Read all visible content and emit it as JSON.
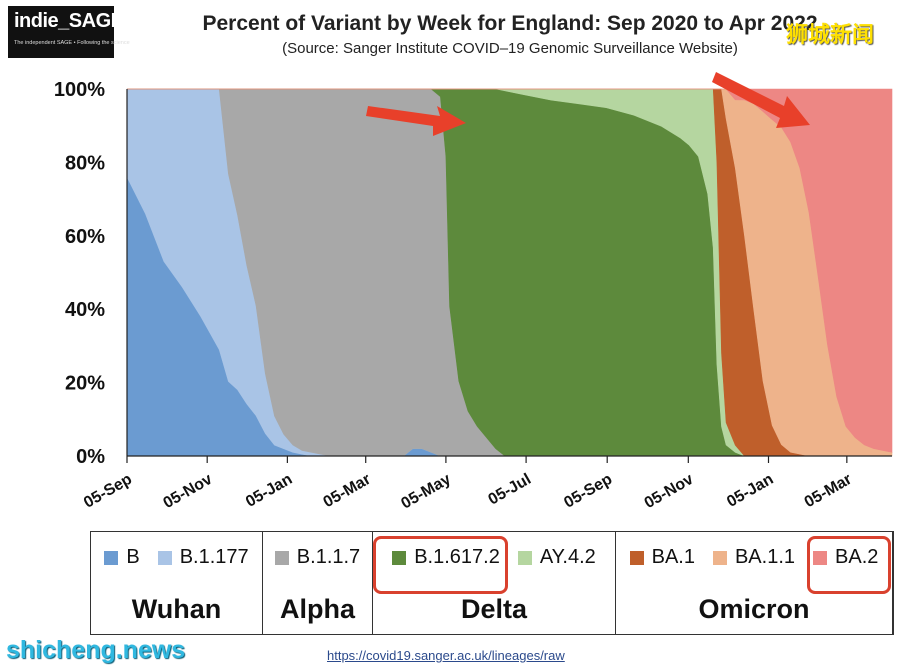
{
  "header": {
    "logo_text": "indie_SAGE",
    "logo_tagline": "The independent SAGE • Following the science",
    "title": "Percent of Variant by Week for England: Sep 2020 to Apr 2022",
    "subtitle": "(Source: Sanger Institute COVID–19 Genomic Surveillance Website)"
  },
  "watermarks": {
    "top": "狮城新闻",
    "bottom": "shicheng.news"
  },
  "source_url": "https://covid19.sanger.ac.uk/lineages/raw",
  "legend_groups": [
    {
      "group": "Wuhan",
      "items": [
        {
          "label": "B",
          "color": "#6b9bd1"
        },
        {
          "label": "B.1.177",
          "color": "#a9c4e6"
        }
      ]
    },
    {
      "group": "Alpha",
      "items": [
        {
          "label": "B.1.1.7",
          "color": "#a8a8a8"
        }
      ]
    },
    {
      "group": "Delta",
      "items": [
        {
          "label": "B.1.617.2",
          "color": "#5d8a3c"
        },
        {
          "label": "AY.4.2",
          "color": "#b5d6a0"
        }
      ]
    },
    {
      "group": "Omicron",
      "items": [
        {
          "label": "BA.1",
          "color": "#bf5f2b"
        },
        {
          "label": "BA.1.1",
          "color": "#eeb38b"
        },
        {
          "label": "BA.2",
          "color": "#ed8784"
        }
      ]
    }
  ],
  "chart_data": {
    "type": "area",
    "stacked": true,
    "title": "Percent of Variant by Week for England: Sep 2020 to Apr 2022",
    "xlabel": "",
    "ylabel": "",
    "x_range_weeks": [
      0,
      83
    ],
    "x_unit": "weeks since 05-Sep-2020",
    "ylim": [
      0,
      100
    ],
    "y_ticks": [
      "0%",
      "20%",
      "40%",
      "60%",
      "80%",
      "100%"
    ],
    "x_ticks": [
      {
        "label": "05-Sep",
        "week": 0
      },
      {
        "label": "05-Nov",
        "week": 8.7
      },
      {
        "label": "05-Jan",
        "week": 17.4
      },
      {
        "label": "05-Mar",
        "week": 25.9
      },
      {
        "label": "05-May",
        "week": 34.6
      },
      {
        "label": "05-Jul",
        "week": 43.3
      },
      {
        "label": "05-Sep",
        "week": 52.1
      },
      {
        "label": "05-Nov",
        "week": 60.9
      },
      {
        "label": "05-Jan",
        "week": 69.6
      },
      {
        "label": "05-Mar",
        "week": 78.1
      }
    ],
    "series": [
      {
        "name": "B",
        "color": "#6b9bd1",
        "points": [
          [
            0,
            76
          ],
          [
            2,
            66
          ],
          [
            4,
            53
          ],
          [
            6,
            46
          ],
          [
            8,
            38
          ],
          [
            10,
            29
          ],
          [
            12,
            22
          ],
          [
            14,
            11
          ],
          [
            15,
            6
          ],
          [
            16,
            3
          ],
          [
            17,
            2
          ],
          [
            18,
            1
          ],
          [
            20,
            0
          ],
          [
            30,
            0
          ],
          [
            31,
            2
          ],
          [
            32,
            2
          ],
          [
            33,
            1
          ],
          [
            34,
            0
          ],
          [
            83,
            0
          ]
        ]
      },
      {
        "name": "B.1.177",
        "color": "#a9c4e6",
        "points": [
          [
            0,
            24
          ],
          [
            2,
            34
          ],
          [
            4,
            47
          ],
          [
            6,
            54
          ],
          [
            8,
            62
          ],
          [
            10,
            71
          ],
          [
            11,
            71
          ],
          [
            12,
            58
          ],
          [
            13,
            44
          ],
          [
            14,
            30
          ],
          [
            15,
            16
          ],
          [
            16,
            8
          ],
          [
            17,
            4
          ],
          [
            18,
            2
          ],
          [
            19,
            1
          ],
          [
            20,
            1
          ],
          [
            22,
            0
          ],
          [
            83,
            0
          ]
        ]
      },
      {
        "name": "B.1.1.7",
        "color": "#a8a8a8",
        "points": [
          [
            0,
            0
          ],
          [
            9,
            0
          ],
          [
            10,
            0
          ],
          [
            11,
            29
          ],
          [
            12,
            42
          ],
          [
            13,
            56
          ],
          [
            14,
            59
          ],
          [
            15,
            76
          ],
          [
            16,
            90
          ],
          [
            17,
            95
          ],
          [
            18,
            97
          ],
          [
            19,
            99
          ],
          [
            26,
            99
          ],
          [
            30,
            98
          ],
          [
            32,
            97
          ],
          [
            33,
            96
          ],
          [
            34,
            94
          ],
          [
            34.6,
            80
          ],
          [
            35,
            40
          ],
          [
            36,
            20
          ],
          [
            37,
            12
          ],
          [
            38,
            8
          ],
          [
            39,
            5
          ],
          [
            40,
            2
          ],
          [
            41,
            0
          ],
          [
            83,
            0
          ]
        ]
      },
      {
        "name": "B.1.617.2",
        "color": "#5d8a3c",
        "points": [
          [
            0,
            0
          ],
          [
            33,
            0
          ],
          [
            34,
            2
          ],
          [
            34.6,
            18
          ],
          [
            35,
            58
          ],
          [
            36,
            78
          ],
          [
            37,
            86
          ],
          [
            38,
            91
          ],
          [
            39,
            94
          ],
          [
            40,
            98
          ],
          [
            41,
            99
          ],
          [
            43,
            97
          ],
          [
            46,
            96
          ],
          [
            49,
            95
          ],
          [
            52,
            93
          ],
          [
            55,
            91
          ],
          [
            58,
            88
          ],
          [
            60,
            85
          ],
          [
            61,
            83
          ],
          [
            62,
            80
          ],
          [
            63,
            70
          ],
          [
            63.6,
            55
          ],
          [
            64,
            25
          ],
          [
            64.5,
            8
          ],
          [
            65,
            3
          ],
          [
            66,
            1
          ],
          [
            67,
            0
          ],
          [
            83,
            0
          ]
        ]
      },
      {
        "name": "AY.4.2",
        "color": "#b5d6a0",
        "points": [
          [
            0,
            0
          ],
          [
            40,
            0
          ],
          [
            42,
            1
          ],
          [
            46,
            3
          ],
          [
            49,
            4
          ],
          [
            52,
            5
          ],
          [
            55,
            7
          ],
          [
            58,
            10
          ],
          [
            60,
            13
          ],
          [
            61,
            15
          ],
          [
            62,
            18
          ],
          [
            63,
            28
          ],
          [
            63.6,
            42
          ],
          [
            64,
            55
          ],
          [
            64.5,
            20
          ],
          [
            65,
            6
          ],
          [
            66,
            2
          ],
          [
            67,
            0
          ],
          [
            83,
            0
          ]
        ]
      },
      {
        "name": "BA.1",
        "color": "#bf5f2b",
        "points": [
          [
            0,
            0
          ],
          [
            63.6,
            0
          ],
          [
            64,
            20
          ],
          [
            64.5,
            72
          ],
          [
            65,
            82
          ],
          [
            66,
            77
          ],
          [
            67,
            60
          ],
          [
            68,
            40
          ],
          [
            69,
            20
          ],
          [
            70,
            8
          ],
          [
            71,
            3
          ],
          [
            72,
            1
          ],
          [
            74,
            0
          ],
          [
            83,
            0
          ]
        ]
      },
      {
        "name": "BA.1.1",
        "color": "#eeb38b",
        "points": [
          [
            0,
            0
          ],
          [
            64.5,
            0
          ],
          [
            65,
            8
          ],
          [
            66,
            19
          ],
          [
            67,
            37
          ],
          [
            68,
            56
          ],
          [
            69,
            72
          ],
          [
            70,
            80
          ],
          [
            71,
            83
          ],
          [
            72,
            82
          ],
          [
            73,
            76
          ],
          [
            74,
            65
          ],
          [
            75,
            48
          ],
          [
            76,
            30
          ],
          [
            77,
            16
          ],
          [
            78,
            8
          ],
          [
            79,
            5
          ],
          [
            80,
            3
          ],
          [
            81,
            2
          ],
          [
            83,
            1
          ]
        ]
      },
      {
        "name": "BA.2",
        "color": "#ed8784",
        "points": [
          [
            0,
            0
          ],
          [
            65,
            0
          ],
          [
            66,
            3
          ],
          [
            67,
            3
          ],
          [
            68,
            4
          ],
          [
            69,
            6
          ],
          [
            70,
            8
          ],
          [
            71,
            10
          ],
          [
            72,
            14
          ],
          [
            73,
            21
          ],
          [
            74,
            33
          ],
          [
            75,
            51
          ],
          [
            76,
            69
          ],
          [
            77,
            83
          ],
          [
            78,
            91
          ],
          [
            79,
            94
          ],
          [
            80,
            96
          ],
          [
            81,
            97
          ],
          [
            83,
            98
          ]
        ]
      }
    ]
  }
}
